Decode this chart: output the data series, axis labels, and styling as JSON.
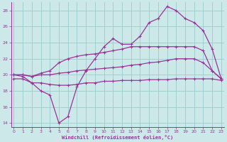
{
  "xlabel": "Windchill (Refroidissement éolien,°C)",
  "bg_color": "#cce8e8",
  "grid_color": "#99cccc",
  "line_color": "#993399",
  "x_ticks": [
    0,
    1,
    2,
    3,
    4,
    5,
    6,
    7,
    8,
    9,
    10,
    11,
    12,
    13,
    14,
    15,
    16,
    17,
    18,
    19,
    20,
    21,
    22,
    23
  ],
  "y_ticks": [
    14,
    16,
    18,
    20,
    22,
    24,
    26,
    28
  ],
  "xlim": [
    -0.3,
    23.3
  ],
  "ylim": [
    13.5,
    29.0
  ],
  "curves": [
    {
      "x": [
        0,
        1,
        2,
        3,
        4,
        5,
        6,
        7,
        8,
        9,
        10,
        11,
        12,
        13,
        14,
        15,
        16,
        17,
        18,
        19,
        20,
        21,
        22,
        23
      ],
      "y": [
        19.5,
        19.5,
        19.0,
        19.0,
        18.8,
        18.7,
        18.7,
        18.8,
        19.0,
        19.0,
        19.2,
        19.2,
        19.3,
        19.3,
        19.3,
        19.4,
        19.4,
        19.4,
        19.5,
        19.5,
        19.5,
        19.5,
        19.5,
        19.3
      ]
    },
    {
      "x": [
        0,
        1,
        2,
        3,
        4,
        5,
        6,
        7,
        8,
        9,
        10,
        11,
        12,
        13,
        14,
        15,
        16,
        17,
        18,
        19,
        20,
        21,
        22,
        23
      ],
      "y": [
        20.0,
        20.0,
        19.8,
        20.0,
        20.0,
        20.2,
        20.3,
        20.5,
        20.6,
        20.7,
        20.8,
        20.9,
        21.0,
        21.2,
        21.3,
        21.5,
        21.6,
        21.8,
        22.0,
        22.0,
        22.0,
        21.5,
        20.5,
        19.5
      ]
    },
    {
      "x": [
        0,
        1,
        2,
        3,
        4,
        5,
        6,
        7,
        8,
        9,
        10,
        11,
        12,
        13,
        14,
        15,
        16,
        17,
        18,
        19,
        20,
        21,
        22,
        23
      ],
      "y": [
        20.0,
        20.0,
        19.8,
        20.2,
        20.5,
        21.5,
        22.0,
        22.3,
        22.5,
        22.6,
        22.8,
        23.0,
        23.2,
        23.5,
        23.5,
        23.5,
        23.5,
        23.5,
        23.5,
        23.5,
        23.5,
        23.0,
        20.5,
        19.5
      ]
    },
    {
      "x": [
        0,
        1,
        2,
        3,
        4,
        5,
        6,
        7,
        8,
        9,
        10,
        11,
        12,
        13,
        14,
        15,
        16,
        17,
        18,
        19,
        20,
        21,
        22,
        23
      ],
      "y": [
        20.0,
        19.8,
        19.0,
        18.0,
        17.5,
        14.0,
        14.8,
        18.5,
        20.5,
        22.0,
        23.5,
        24.5,
        23.8,
        23.8,
        24.8,
        26.5,
        27.0,
        28.5,
        28.0,
        27.0,
        26.5,
        25.5,
        23.2,
        19.5
      ]
    }
  ]
}
